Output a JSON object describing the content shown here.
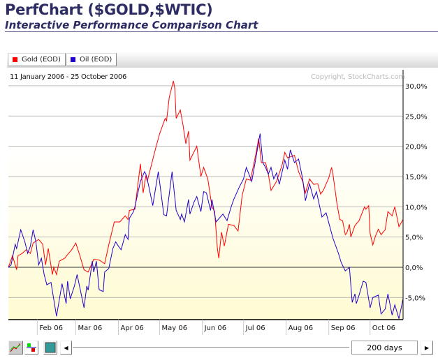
{
  "header": {
    "title": "PerfChart ($GOLD,$WTIC)",
    "subtitle": "Interactive Performance Comparison Chart"
  },
  "legend": [
    {
      "label": "Gold (EOD)",
      "color": "#ff0000"
    },
    {
      "label": "Oil (EOD)",
      "color": "#2200cc"
    }
  ],
  "date_range": "11 January 2006 - 25 October 2006",
  "copyright": "Copyright, StockCharts.com",
  "toolbar": {
    "period_label": "200 days",
    "icons": [
      "line-chart-icon",
      "histogram-icon",
      "color-scheme-icon",
      "scroll-left-icon",
      "scroll-right-icon"
    ]
  },
  "chart_data": {
    "type": "line",
    "xlim": [
      "2006-01-11",
      "2006-10-25"
    ],
    "ylim": [
      -9.2,
      31.5
    ],
    "y_ticks": [
      30,
      25,
      20,
      15,
      10,
      5,
      0,
      -5
    ],
    "y_tick_labels": [
      "30,0%",
      "25,0%",
      "20,0%",
      "15,0%",
      "10,0%",
      "5,0%",
      "0,0%",
      "-5,0%"
    ],
    "x_ticks": [
      "2006-02-01",
      "2006-03-01",
      "2006-04-01",
      "2006-05-01",
      "2006-06-01",
      "2006-07-01",
      "2006-08-01",
      "2006-09-01",
      "2006-10-01"
    ],
    "x_tick_labels": [
      "Feb 06",
      "Mar 06",
      "Apr 06",
      "May 06",
      "Jun 06",
      "Jul 06",
      "Aug 06",
      "Sep 06",
      "Oct 06"
    ],
    "grid": true,
    "legend": "top-left",
    "series": [
      {
        "name": "Gold (EOD)",
        "color": "#ff0000",
        "points": [
          [
            "2006-01-11",
            0
          ],
          [
            "2006-01-14",
            1.9
          ],
          [
            "2006-01-17",
            -0.4
          ],
          [
            "2006-01-18",
            1.9
          ],
          [
            "2006-01-21",
            2.3
          ],
          [
            "2006-01-24",
            2.9
          ],
          [
            "2006-01-27",
            2.3
          ],
          [
            "2006-01-29",
            4.0
          ],
          [
            "2006-02-02",
            4.6
          ],
          [
            "2006-02-05",
            3.8
          ],
          [
            "2006-02-07",
            0.4
          ],
          [
            "2006-02-09",
            3.1
          ],
          [
            "2006-02-12",
            -1.2
          ],
          [
            "2006-02-13",
            0
          ],
          [
            "2006-02-15",
            -1.2
          ],
          [
            "2006-02-17",
            1.0
          ],
          [
            "2006-02-21",
            1.5
          ],
          [
            "2006-02-23",
            2.1
          ],
          [
            "2006-02-26",
            2.9
          ],
          [
            "2006-03-01",
            4.0
          ],
          [
            "2006-03-04",
            1.9
          ],
          [
            "2006-03-07",
            -0.4
          ],
          [
            "2006-03-10",
            -0.8
          ],
          [
            "2006-03-14",
            1.3
          ],
          [
            "2006-03-18",
            1.2
          ],
          [
            "2006-03-22",
            0.6
          ],
          [
            "2006-03-25",
            3.7
          ],
          [
            "2006-03-29",
            7.5
          ],
          [
            "2006-04-02",
            7.5
          ],
          [
            "2006-04-06",
            8.5
          ],
          [
            "2006-04-08",
            7.9
          ],
          [
            "2006-04-09",
            9.4
          ],
          [
            "2006-04-13",
            9.6
          ],
          [
            "2006-04-17",
            17.1
          ],
          [
            "2006-04-19",
            12.3
          ],
          [
            "2006-04-21",
            15.2
          ],
          [
            "2006-04-22",
            14.2
          ],
          [
            "2006-04-25",
            16.9
          ],
          [
            "2006-04-28",
            19.6
          ],
          [
            "2006-05-01",
            22.1
          ],
          [
            "2006-05-05",
            24.6
          ],
          [
            "2006-05-06",
            24.2
          ],
          [
            "2006-05-08",
            28.1
          ],
          [
            "2006-05-11",
            30.8
          ],
          [
            "2006-05-12",
            29.6
          ],
          [
            "2006-05-13",
            24.6
          ],
          [
            "2006-05-16",
            26.0
          ],
          [
            "2006-05-18",
            23.5
          ],
          [
            "2006-05-20",
            20.4
          ],
          [
            "2006-05-22",
            22.5
          ],
          [
            "2006-05-23",
            17.7
          ],
          [
            "2006-05-28",
            20.0
          ],
          [
            "2006-05-31",
            15.0
          ],
          [
            "2006-06-02",
            16.5
          ],
          [
            "2006-06-05",
            14.6
          ],
          [
            "2006-06-08",
            10.0
          ],
          [
            "2006-06-10",
            9.2
          ],
          [
            "2006-06-12",
            3.1
          ],
          [
            "2006-06-13",
            1.5
          ],
          [
            "2006-06-15",
            5.8
          ],
          [
            "2006-06-17",
            3.5
          ],
          [
            "2006-06-20",
            7.1
          ],
          [
            "2006-06-24",
            6.9
          ],
          [
            "2006-06-27",
            6.0
          ],
          [
            "2006-06-30",
            11.9
          ],
          [
            "2006-07-03",
            14.6
          ],
          [
            "2006-07-06",
            14.4
          ],
          [
            "2006-07-10",
            18.8
          ],
          [
            "2006-07-12",
            21.3
          ],
          [
            "2006-07-14",
            17.3
          ],
          [
            "2006-07-17",
            17.3
          ],
          [
            "2006-07-19",
            15.4
          ],
          [
            "2006-07-21",
            12.7
          ],
          [
            "2006-07-25",
            14.2
          ],
          [
            "2006-07-29",
            16.9
          ],
          [
            "2006-07-31",
            19.0
          ],
          [
            "2006-08-02",
            18.1
          ],
          [
            "2006-08-07",
            18.5
          ],
          [
            "2006-08-10",
            15.8
          ],
          [
            "2006-08-13",
            14.2
          ],
          [
            "2006-08-15",
            12.3
          ],
          [
            "2006-08-18",
            14.6
          ],
          [
            "2006-08-21",
            13.7
          ],
          [
            "2006-08-24",
            13.8
          ],
          [
            "2006-08-26",
            12.1
          ],
          [
            "2006-08-28",
            12.7
          ],
          [
            "2006-09-01",
            14.8
          ],
          [
            "2006-09-03",
            16.5
          ],
          [
            "2006-09-04",
            15.4
          ],
          [
            "2006-09-07",
            10.4
          ],
          [
            "2006-09-09",
            7.9
          ],
          [
            "2006-09-11",
            7.7
          ],
          [
            "2006-09-13",
            5.4
          ],
          [
            "2006-09-14",
            5.6
          ],
          [
            "2006-09-16",
            7.1
          ],
          [
            "2006-09-17",
            5.0
          ],
          [
            "2006-09-20",
            6.9
          ],
          [
            "2006-09-23",
            7.7
          ],
          [
            "2006-09-27",
            10.0
          ],
          [
            "2006-09-28",
            9.6
          ],
          [
            "2006-09-30",
            10.2
          ],
          [
            "2006-10-01",
            5.6
          ],
          [
            "2006-10-03",
            3.7
          ],
          [
            "2006-10-05",
            5.2
          ],
          [
            "2006-10-07",
            6.3
          ],
          [
            "2006-10-09",
            5.4
          ],
          [
            "2006-10-12",
            6.2
          ],
          [
            "2006-10-14",
            9.2
          ],
          [
            "2006-10-17",
            8.5
          ],
          [
            "2006-10-19",
            10.0
          ],
          [
            "2006-10-22",
            6.7
          ],
          [
            "2006-10-25",
            7.9
          ]
        ]
      },
      {
        "name": "Oil (EOD)",
        "color": "#2200cc",
        "points": [
          [
            "2006-01-11",
            0
          ],
          [
            "2006-01-13",
            0.4
          ],
          [
            "2006-01-16",
            3.8
          ],
          [
            "2006-01-17",
            3.1
          ],
          [
            "2006-01-20",
            6.2
          ],
          [
            "2006-01-23",
            4.2
          ],
          [
            "2006-01-25",
            2.3
          ],
          [
            "2006-01-27",
            3.5
          ],
          [
            "2006-01-29",
            6.2
          ],
          [
            "2006-01-31",
            4.2
          ],
          [
            "2006-02-02",
            0.4
          ],
          [
            "2006-02-04",
            1.5
          ],
          [
            "2006-02-06",
            -1.2
          ],
          [
            "2006-02-08",
            -2.9
          ],
          [
            "2006-02-11",
            -2.5
          ],
          [
            "2006-02-15",
            -8.1
          ],
          [
            "2006-02-19",
            -2.7
          ],
          [
            "2006-02-22",
            -6.0
          ],
          [
            "2006-02-23",
            -2.3
          ],
          [
            "2006-02-25",
            -5.2
          ],
          [
            "2006-02-28",
            -3.1
          ],
          [
            "2006-03-02",
            -1.2
          ],
          [
            "2006-03-07",
            -6.7
          ],
          [
            "2006-03-09",
            -3.1
          ],
          [
            "2006-03-10",
            -3.8
          ],
          [
            "2006-03-13",
            1.0
          ],
          [
            "2006-03-14",
            -0.8
          ],
          [
            "2006-03-16",
            1.0
          ],
          [
            "2006-03-18",
            -3.7
          ],
          [
            "2006-03-21",
            -4.0
          ],
          [
            "2006-03-22",
            -0.8
          ],
          [
            "2006-03-25",
            -0.2
          ],
          [
            "2006-03-28",
            3.1
          ],
          [
            "2006-03-30",
            4.2
          ],
          [
            "2006-04-01",
            3.5
          ],
          [
            "2006-04-03",
            2.9
          ],
          [
            "2006-04-06",
            5.4
          ],
          [
            "2006-04-08",
            4.6
          ],
          [
            "2006-04-09",
            8.1
          ],
          [
            "2006-04-12",
            9.2
          ],
          [
            "2006-04-13",
            10.0
          ],
          [
            "2006-04-17",
            14.2
          ],
          [
            "2006-04-20",
            15.8
          ],
          [
            "2006-04-21",
            15.4
          ],
          [
            "2006-04-23",
            13.5
          ],
          [
            "2006-04-26",
            10.2
          ],
          [
            "2006-04-30",
            15.8
          ],
          [
            "2006-05-04",
            8.7
          ],
          [
            "2006-05-06",
            8.5
          ],
          [
            "2006-05-10",
            15.8
          ],
          [
            "2006-05-13",
            9.4
          ],
          [
            "2006-05-16",
            7.9
          ],
          [
            "2006-05-17",
            8.8
          ],
          [
            "2006-05-19",
            7.5
          ],
          [
            "2006-05-22",
            11.2
          ],
          [
            "2006-05-23",
            8.8
          ],
          [
            "2006-05-26",
            10.8
          ],
          [
            "2006-05-28",
            11.7
          ],
          [
            "2006-05-31",
            9.2
          ],
          [
            "2006-06-02",
            12.5
          ],
          [
            "2006-06-04",
            12.3
          ],
          [
            "2006-06-07",
            9.4
          ],
          [
            "2006-06-08",
            11.2
          ],
          [
            "2006-06-11",
            7.5
          ],
          [
            "2006-06-16",
            8.8
          ],
          [
            "2006-06-19",
            7.7
          ],
          [
            "2006-06-22",
            10.0
          ],
          [
            "2006-06-24",
            11.3
          ],
          [
            "2006-06-28",
            13.3
          ],
          [
            "2006-07-01",
            14.6
          ],
          [
            "2006-07-03",
            16.5
          ],
          [
            "2006-07-07",
            14.2
          ],
          [
            "2006-07-10",
            18.1
          ],
          [
            "2006-07-13",
            22.1
          ],
          [
            "2006-07-15",
            17.3
          ],
          [
            "2006-07-17",
            16.5
          ],
          [
            "2006-07-19",
            15.4
          ],
          [
            "2006-07-21",
            16.5
          ],
          [
            "2006-07-23",
            14.6
          ],
          [
            "2006-07-25",
            15.6
          ],
          [
            "2006-07-27",
            13.7
          ],
          [
            "2006-07-31",
            17.7
          ],
          [
            "2006-08-02",
            16.2
          ],
          [
            "2006-08-04",
            19.4
          ],
          [
            "2006-08-07",
            17.3
          ],
          [
            "2006-08-10",
            17.9
          ],
          [
            "2006-08-13",
            14.6
          ],
          [
            "2006-08-15",
            11.0
          ],
          [
            "2006-08-18",
            13.8
          ],
          [
            "2006-08-21",
            11.3
          ],
          [
            "2006-08-23",
            12.5
          ],
          [
            "2006-08-27",
            8.3
          ],
          [
            "2006-08-30",
            9.0
          ],
          [
            "2006-09-04",
            4.8
          ],
          [
            "2006-09-08",
            2.3
          ],
          [
            "2006-09-10",
            0.8
          ],
          [
            "2006-09-13",
            -0.6
          ],
          [
            "2006-09-16",
            0
          ],
          [
            "2006-09-18",
            -5.8
          ],
          [
            "2006-09-20",
            -4.4
          ],
          [
            "2006-09-21",
            -6.0
          ],
          [
            "2006-09-23",
            -4.6
          ],
          [
            "2006-09-26",
            -2.3
          ],
          [
            "2006-09-28",
            -2.5
          ],
          [
            "2006-10-01",
            -6.7
          ],
          [
            "2006-10-03",
            -5.0
          ],
          [
            "2006-10-07",
            -4.6
          ],
          [
            "2006-10-09",
            -7.7
          ],
          [
            "2006-10-12",
            -6.9
          ],
          [
            "2006-10-14",
            -4.4
          ],
          [
            "2006-10-17",
            -7.9
          ],
          [
            "2006-10-19",
            -6.2
          ],
          [
            "2006-10-22",
            -8.5
          ],
          [
            "2006-10-25",
            -5.2
          ]
        ]
      }
    ]
  }
}
